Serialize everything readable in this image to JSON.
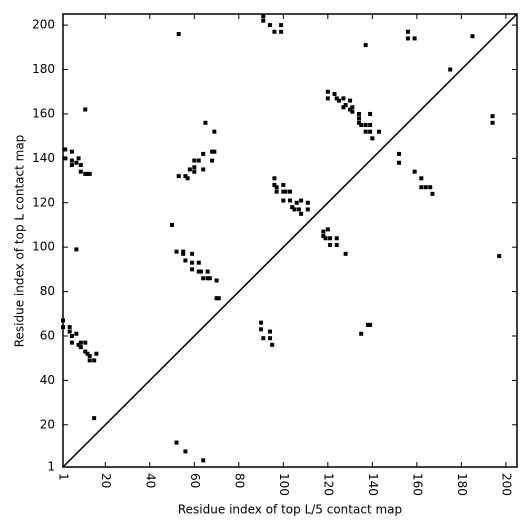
{
  "chart_data": {
    "type": "scatter",
    "xlabel": "Residue index of top L/5 contact map",
    "ylabel": "Residue index of top L contact map",
    "color": "#000000",
    "xlim": [
      1,
      205
    ],
    "ylim": [
      1,
      205
    ],
    "xticks": [
      1,
      20,
      40,
      60,
      80,
      100,
      120,
      140,
      160,
      180,
      200
    ],
    "yticks": [
      1,
      20,
      40,
      60,
      80,
      100,
      120,
      140,
      160,
      180,
      200
    ],
    "x": [
      53,
      91,
      91,
      94,
      96,
      99,
      99,
      2,
      2,
      5,
      5,
      5,
      7,
      8,
      9,
      9,
      11,
      12,
      13,
      11,
      7,
      50,
      53,
      56,
      57,
      58,
      60,
      60,
      60,
      62,
      64,
      64,
      65,
      68,
      69,
      68,
      69,
      52,
      55,
      55,
      56,
      59,
      59,
      59,
      62,
      62,
      63,
      64,
      66,
      66,
      67,
      70,
      70,
      71,
      96,
      96,
      97,
      97,
      100,
      100,
      101,
      100,
      103,
      103,
      104,
      105,
      106,
      107,
      108,
      108,
      111,
      111,
      118,
      118,
      119,
      120,
      121,
      121,
      124,
      124,
      128,
      120,
      120,
      123,
      124,
      125,
      127,
      127,
      128,
      130,
      130,
      131,
      131,
      134,
      134,
      134,
      135,
      137,
      137,
      139,
      139,
      140,
      143,
      139,
      137,
      152,
      152,
      156,
      156,
      159,
      159,
      162,
      162,
      164,
      166,
      167,
      175,
      185,
      194,
      194,
      1,
      1,
      4,
      4,
      5,
      5,
      7,
      8,
      9,
      9,
      11,
      11,
      12,
      13,
      13,
      15,
      15,
      16,
      52,
      56,
      64,
      90,
      90,
      91,
      94,
      94,
      95,
      135,
      138,
      139,
      197
    ],
    "values": [
      196,
      204,
      202,
      200,
      197,
      200,
      197,
      144,
      140,
      143,
      139,
      137,
      138,
      140,
      134,
      137,
      133,
      133,
      133,
      162,
      99,
      110,
      132,
      132,
      131,
      135,
      139,
      136,
      134,
      139,
      135,
      142,
      156,
      143,
      143,
      139,
      152,
      98,
      98,
      97,
      94,
      97,
      93,
      90,
      93,
      89,
      89,
      86,
      89,
      86,
      86,
      85,
      77,
      77,
      131,
      128,
      127,
      125,
      128,
      125,
      125,
      121,
      125,
      121,
      118,
      117,
      120,
      117,
      121,
      115,
      120,
      117,
      107,
      105,
      104,
      108,
      104,
      101,
      101,
      104,
      97,
      170,
      167,
      169,
      167,
      166,
      167,
      163,
      164,
      166,
      162,
      161,
      163,
      160,
      158,
      156,
      155,
      152,
      155,
      152,
      155,
      149,
      152,
      160,
      191,
      142,
      138,
      197,
      194,
      194,
      134,
      131,
      127,
      127,
      127,
      124,
      180,
      195,
      159,
      156,
      67,
      64,
      64,
      62,
      60,
      57,
      61,
      56,
      57,
      55,
      53,
      57,
      52,
      51,
      49,
      49,
      23,
      52,
      12,
      8,
      4,
      66,
      63,
      59,
      62,
      59,
      56,
      61,
      65,
      65,
      96
    ]
  }
}
